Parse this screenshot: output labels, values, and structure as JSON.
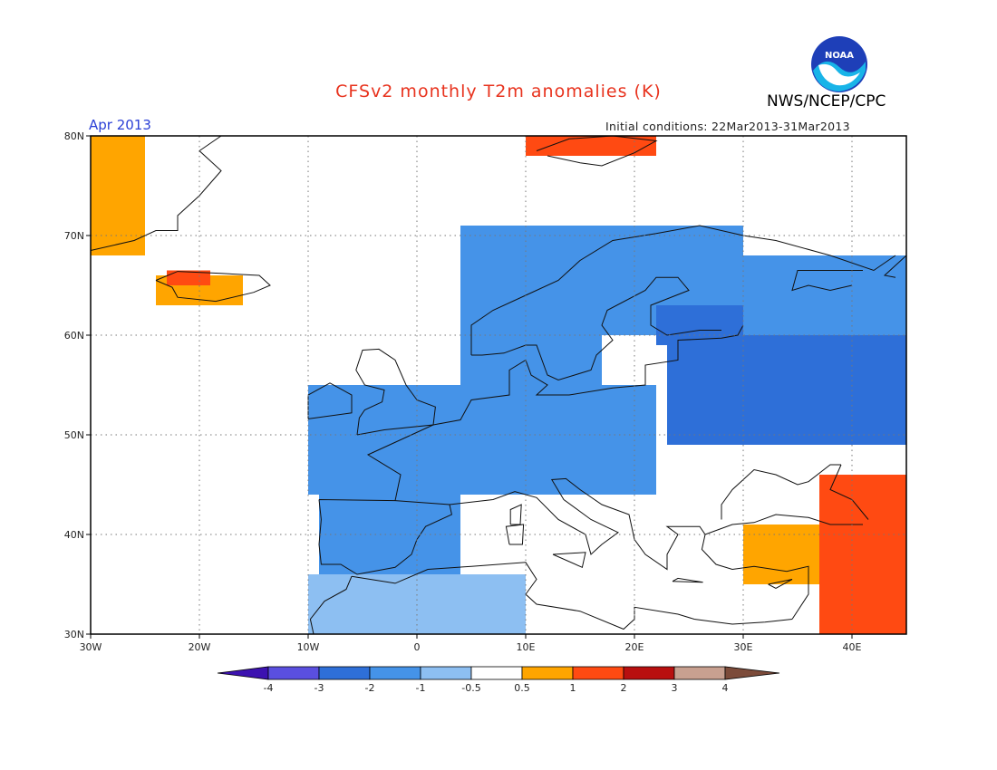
{
  "header": {
    "title": "CFSv2 monthly T2m anomalies (K)",
    "agency": "NWS/NCEP/CPC",
    "logo_text": "NOAA",
    "valid_month": "Apr 2013",
    "initial_conditions": "Initial conditions: 22Mar2013-31Mar2013"
  },
  "map": {
    "region": "Europe",
    "lon_range": [
      -30,
      45
    ],
    "lat_range": [
      30,
      80
    ],
    "lat_ticks": [
      {
        "value": 80,
        "label": "80N"
      },
      {
        "value": 70,
        "label": "70N"
      },
      {
        "value": 60,
        "label": "60N"
      },
      {
        "value": 50,
        "label": "50N"
      },
      {
        "value": 40,
        "label": "40N"
      },
      {
        "value": 30,
        "label": "30N"
      }
    ],
    "lon_ticks": [
      {
        "value": -30,
        "label": "30W"
      },
      {
        "value": -20,
        "label": "20W"
      },
      {
        "value": -10,
        "label": "10W"
      },
      {
        "value": 0,
        "label": "0"
      },
      {
        "value": 10,
        "label": "10E"
      },
      {
        "value": 20,
        "label": "20E"
      },
      {
        "value": 30,
        "label": "30E"
      },
      {
        "value": 40,
        "label": "40E"
      }
    ],
    "grid": "dotted"
  },
  "legend": {
    "boundaries": [
      "-4",
      "-3",
      "-2",
      "-1",
      "-0.5",
      "0.5",
      "1",
      "2",
      "3",
      "4"
    ],
    "colors": [
      "#3c12b0",
      "#5a4fe0",
      "#2e6fd8",
      "#4593e8",
      "#8dbff2",
      "#ffffff",
      "#ffa500",
      "#ff4a12",
      "#b80f0f",
      "#c8a090",
      "#7c4b3a"
    ]
  },
  "chart_data": {
    "type": "heatmap",
    "title": "CFSv2 monthly T2m anomalies (K)",
    "variable": "T2m anomaly",
    "units": "K",
    "note": "approximate anomaly regions (lon/lat bounds in degrees, value in K)",
    "regions": [
      {
        "lon": [
          -30,
          -25
        ],
        "lat": [
          68,
          80
        ],
        "value": 0.7
      },
      {
        "lon": [
          -24,
          -16
        ],
        "lat": [
          63,
          66
        ],
        "value": 0.7
      },
      {
        "lon": [
          -23,
          -19
        ],
        "lat": [
          65,
          66.5
        ],
        "value": 1.2
      },
      {
        "lon": [
          4,
          17
        ],
        "lat": [
          55,
          71
        ],
        "value": -1.5
      },
      {
        "lon": [
          17,
          30
        ],
        "lat": [
          60,
          71
        ],
        "value": -1.5
      },
      {
        "lon": [
          22,
          30
        ],
        "lat": [
          59,
          63
        ],
        "value": -2.3
      },
      {
        "lon": [
          23,
          45
        ],
        "lat": [
          49,
          60
        ],
        "value": -2.5
      },
      {
        "lon": [
          -10,
          22
        ],
        "lat": [
          44,
          55
        ],
        "value": -1.3
      },
      {
        "lon": [
          -9,
          4
        ],
        "lat": [
          36,
          44
        ],
        "value": -1.3
      },
      {
        "lon": [
          -10,
          10
        ],
        "lat": [
          30,
          36
        ],
        "value": -1.0
      },
      {
        "lon": [
          30,
          45
        ],
        "lat": [
          60,
          68
        ],
        "value": -1.4
      },
      {
        "lon": [
          30,
          37
        ],
        "lat": [
          35,
          41
        ],
        "value": 0.8
      },
      {
        "lon": [
          37,
          45
        ],
        "lat": [
          30,
          46
        ],
        "value": 1.2
      },
      {
        "lon": [
          40,
          45
        ],
        "lat": [
          38,
          44
        ],
        "value": 1.6
      },
      {
        "lon": [
          10,
          22
        ],
        "lat": [
          78,
          80
        ],
        "value": 1.1
      }
    ]
  }
}
